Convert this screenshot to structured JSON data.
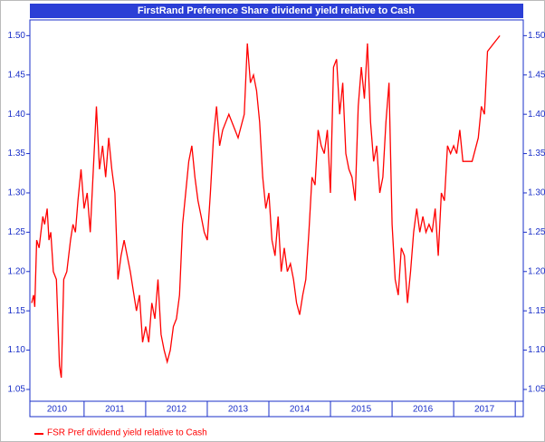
{
  "chart_data": {
    "type": "line",
    "title": "FirstRand Preference Share dividend yield relative to Cash",
    "categories": [
      "2010",
      "2011",
      "2012",
      "2013",
      "2014",
      "2015",
      "2016",
      "2017"
    ],
    "xlim": [
      2010.12,
      2018.13
    ],
    "xticks": [
      2011,
      2012,
      2013,
      2014,
      2015,
      2016,
      2017,
      2018
    ],
    "ylim": [
      1.035,
      1.52
    ],
    "yticks": [
      1.05,
      {
        "value": 1.1,
        "label": "1.10"
      },
      1.15,
      {
        "value": 1.2,
        "label": "1.20"
      },
      1.25,
      {
        "value": 1.3,
        "label": "1.30"
      },
      1.35,
      {
        "value": 1.4,
        "label": "1.40"
      },
      1.45,
      {
        "value": 1.5,
        "label": "1.50"
      }
    ],
    "series": [
      {
        "name": "FSR Pref dividend yield relative to Cash",
        "color": "#ff0000",
        "x": [
          2010.15,
          2010.18,
          2010.2,
          2010.23,
          2010.27,
          2010.3,
          2010.33,
          2010.36,
          2010.4,
          2010.43,
          2010.46,
          2010.5,
          2010.55,
          2010.6,
          2010.63,
          2010.67,
          2010.72,
          2010.78,
          2010.82,
          2010.86,
          2010.9,
          2010.95,
          2011.0,
          2011.05,
          2011.1,
          2011.15,
          2011.2,
          2011.25,
          2011.3,
          2011.35,
          2011.4,
          2011.45,
          2011.5,
          2011.55,
          2011.6,
          2011.65,
          2011.75,
          2011.85,
          2011.9,
          2011.95,
          2012.0,
          2012.05,
          2012.1,
          2012.15,
          2012.2,
          2012.25,
          2012.3,
          2012.35,
          2012.4,
          2012.45,
          2012.5,
          2012.55,
          2012.6,
          2012.65,
          2012.7,
          2012.75,
          2012.8,
          2012.85,
          2012.9,
          2012.95,
          2013.0,
          2013.05,
          2013.1,
          2013.15,
          2013.2,
          2013.25,
          2013.3,
          2013.35,
          2013.45,
          2013.5,
          2013.6,
          2013.65,
          2013.7,
          2013.75,
          2013.8,
          2013.85,
          2013.9,
          2013.95,
          2014.0,
          2014.05,
          2014.1,
          2014.15,
          2014.2,
          2014.25,
          2014.3,
          2014.35,
          2014.4,
          2014.45,
          2014.5,
          2014.55,
          2014.6,
          2014.65,
          2014.7,
          2014.75,
          2014.8,
          2014.85,
          2014.9,
          2014.95,
          2015.0,
          2015.05,
          2015.1,
          2015.15,
          2015.2,
          2015.25,
          2015.3,
          2015.35,
          2015.4,
          2015.45,
          2015.5,
          2015.55,
          2015.6,
          2015.65,
          2015.7,
          2015.75,
          2015.8,
          2015.85,
          2015.9,
          2015.95,
          2016.0,
          2016.05,
          2016.1,
          2016.15,
          2016.2,
          2016.25,
          2016.3,
          2016.35,
          2016.4,
          2016.45,
          2016.5,
          2016.55,
          2016.6,
          2016.65,
          2016.7,
          2016.75,
          2016.8,
          2016.85,
          2016.9,
          2016.95,
          2017.0,
          2017.05,
          2017.1,
          2017.15,
          2017.2,
          2017.3,
          2017.4,
          2017.45,
          2017.5,
          2017.55,
          2017.65,
          2017.75
        ],
        "values": [
          1.16,
          1.17,
          1.155,
          1.24,
          1.23,
          1.25,
          1.27,
          1.26,
          1.28,
          1.24,
          1.25,
          1.2,
          1.19,
          1.08,
          1.065,
          1.19,
          1.2,
          1.24,
          1.26,
          1.25,
          1.29,
          1.33,
          1.28,
          1.3,
          1.25,
          1.33,
          1.41,
          1.33,
          1.36,
          1.32,
          1.37,
          1.33,
          1.3,
          1.19,
          1.22,
          1.24,
          1.2,
          1.15,
          1.17,
          1.11,
          1.13,
          1.11,
          1.16,
          1.14,
          1.19,
          1.12,
          1.1,
          1.085,
          1.1,
          1.13,
          1.14,
          1.17,
          1.26,
          1.3,
          1.34,
          1.36,
          1.32,
          1.29,
          1.27,
          1.25,
          1.24,
          1.3,
          1.37,
          1.41,
          1.36,
          1.38,
          1.39,
          1.4,
          1.38,
          1.37,
          1.4,
          1.49,
          1.44,
          1.45,
          1.43,
          1.39,
          1.32,
          1.28,
          1.3,
          1.24,
          1.22,
          1.27,
          1.2,
          1.23,
          1.2,
          1.21,
          1.19,
          1.16,
          1.145,
          1.17,
          1.19,
          1.25,
          1.32,
          1.31,
          1.38,
          1.36,
          1.35,
          1.38,
          1.3,
          1.46,
          1.47,
          1.4,
          1.44,
          1.35,
          1.33,
          1.32,
          1.29,
          1.41,
          1.46,
          1.42,
          1.49,
          1.39,
          1.34,
          1.36,
          1.3,
          1.32,
          1.39,
          1.44,
          1.26,
          1.19,
          1.17,
          1.23,
          1.22,
          1.16,
          1.2,
          1.25,
          1.28,
          1.25,
          1.27,
          1.25,
          1.26,
          1.25,
          1.28,
          1.22,
          1.3,
          1.29,
          1.36,
          1.35,
          1.36,
          1.35,
          1.38,
          1.34,
          1.34,
          1.34,
          1.37,
          1.41,
          1.4,
          1.48,
          1.49,
          1.5
        ]
      }
    ]
  }
}
